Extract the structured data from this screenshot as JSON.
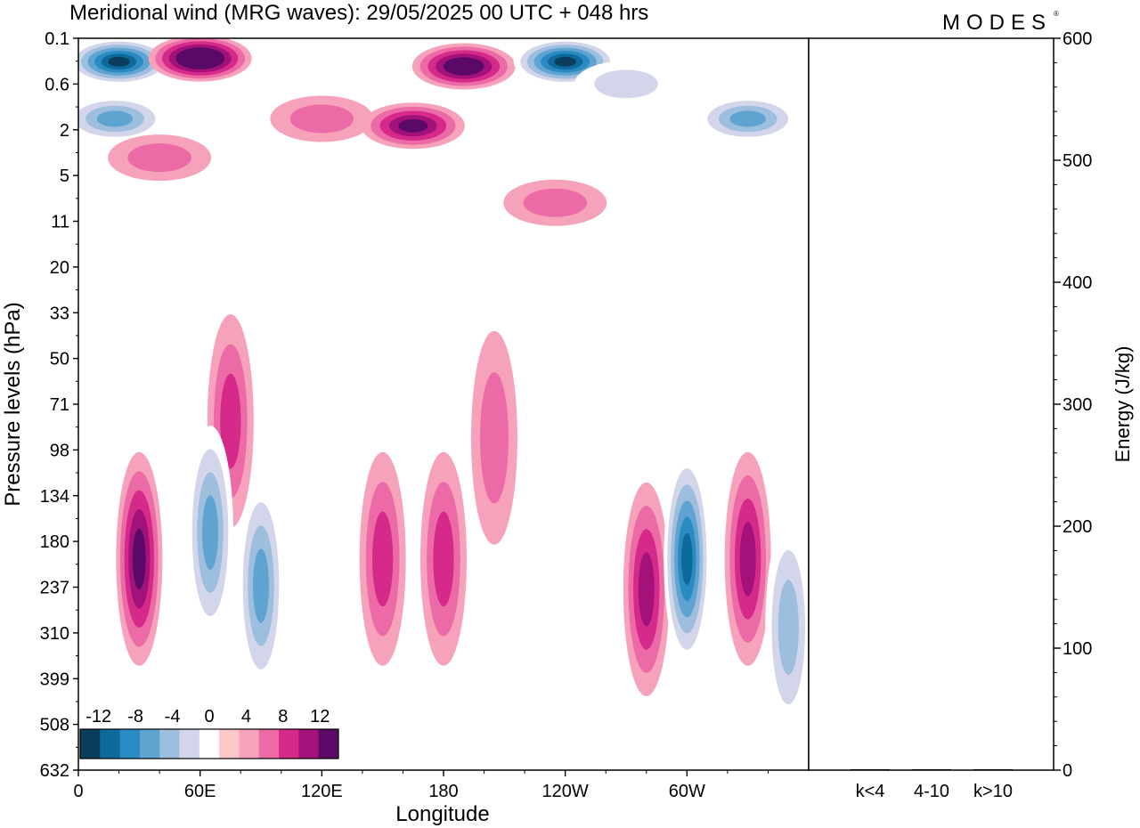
{
  "title": "Meridional wind (MRG waves):  29/05/2025  00 UTC  + 048 hrs",
  "logo_text": "MODES",
  "chart_data": [
    {
      "type": "heatmap",
      "title": "Meridional wind (MRG waves):  29/05/2025  00 UTC  + 048 hrs",
      "xlabel": "Longitude",
      "ylabel": "Pressure levels (hPa)",
      "x_ticks": [
        "0",
        "60E",
        "120E",
        "180",
        "120W",
        "60W"
      ],
      "y_ticks": [
        "0.1",
        "0.6",
        "2",
        "5",
        "11",
        "20",
        "33",
        "50",
        "71",
        "98",
        "134",
        "180",
        "237",
        "310",
        "399",
        "508",
        "632"
      ],
      "colorbar": {
        "tick_labels": [
          "-12",
          "-8",
          "-4",
          "0",
          "4",
          "8",
          "12"
        ],
        "levels": [
          -14,
          -12,
          -10,
          -8,
          -6,
          -4,
          -2,
          2,
          4,
          6,
          8,
          10,
          12,
          14
        ],
        "colors": [
          "#0b3d5c",
          "#0e6a9c",
          "#2a8bc2",
          "#5fa3d0",
          "#9dbfdd",
          "#d3d6ea",
          "#ffffff",
          "#fbc8c8",
          "#f6a2bb",
          "#ec6aa6",
          "#d62a8a",
          "#a3127a",
          "#5a0a66"
        ]
      },
      "blobs": [
        {
          "lon": 20,
          "lev": 0.25,
          "value": -14
        },
        {
          "lon": 60,
          "lev": 0.22,
          "value": 14
        },
        {
          "lon": 18,
          "lev": 1.5,
          "value": -8
        },
        {
          "lon": 40,
          "lev": 3.5,
          "value": 3
        },
        {
          "lon": 120,
          "lev": 1.5,
          "value": 3
        },
        {
          "lon": 165,
          "lev": 1.8,
          "value": 10
        },
        {
          "lon": 190,
          "lev": 0.3,
          "value": 12
        },
        {
          "lon": 240,
          "lev": 0.25,
          "value": -14
        },
        {
          "lon": 235,
          "lev": 8,
          "value": 4
        },
        {
          "lon": 270,
          "lev": 0.6,
          "value": -4
        },
        {
          "lon": 330,
          "lev": 1.5,
          "value": -8
        },
        {
          "lon": 30,
          "lev": 200,
          "value": 10
        },
        {
          "lon": 75,
          "lev": 80,
          "value": 6
        },
        {
          "lon": 65,
          "lev": 170,
          "value": -7
        },
        {
          "lon": 90,
          "lev": 235,
          "value": -7
        },
        {
          "lon": 150,
          "lev": 200,
          "value": 6
        },
        {
          "lon": 180,
          "lev": 200,
          "value": 6
        },
        {
          "lon": 205,
          "lev": 90,
          "value": 4
        },
        {
          "lon": 280,
          "lev": 240,
          "value": 7
        },
        {
          "lon": 300,
          "lev": 200,
          "value": -12
        },
        {
          "lon": 330,
          "lev": 200,
          "value": 8
        },
        {
          "lon": 350,
          "lev": 300,
          "value": -6
        }
      ]
    },
    {
      "type": "bar",
      "categories": [
        "k<4",
        "4-10",
        "k>10"
      ],
      "values": [
        0,
        0,
        0
      ],
      "ylabel": "Energy (J/kg)",
      "ylim": [
        0,
        600
      ],
      "y_ticks": [
        "0",
        "100",
        "200",
        "300",
        "400",
        "500",
        "600"
      ]
    }
  ]
}
